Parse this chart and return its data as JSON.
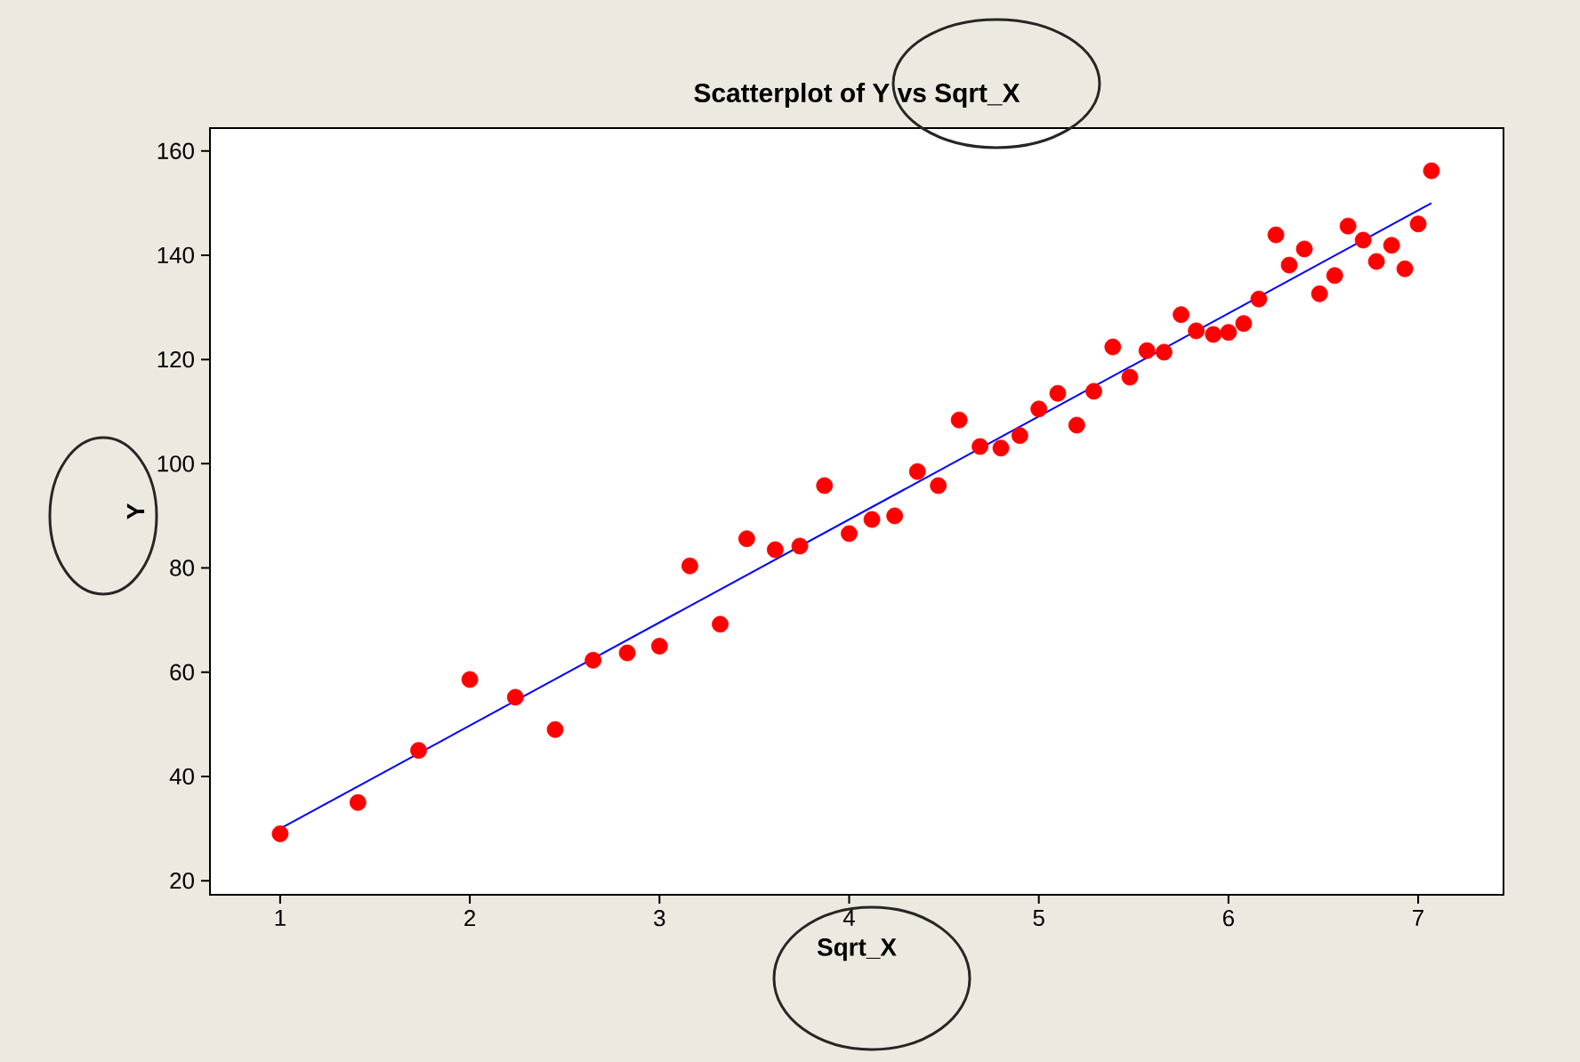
{
  "chart_data": {
    "type": "scatter",
    "title": "Scatterplot of Y vs Sqrt_X",
    "xlabel": "Sqrt_X",
    "ylabel": "Y",
    "xlim": [
      0.63,
      7.45
    ],
    "ylim": [
      17.3,
      164.4
    ],
    "xticks": [
      1,
      2,
      3,
      4,
      5,
      6,
      7
    ],
    "yticks": [
      20,
      40,
      60,
      80,
      100,
      120,
      140,
      160
    ],
    "series": [
      {
        "color": "#ff0000",
        "x": [
          1,
          1.41,
          1.73,
          2,
          2.24,
          2.45,
          2.65,
          2.83,
          3,
          3.16,
          3.32,
          3.46,
          3.61,
          3.74,
          3.87,
          4,
          4.12,
          4.24,
          4.36,
          4.47,
          4.58,
          4.69,
          4.8,
          4.9,
          5,
          5.1,
          5.2,
          5.29,
          5.39,
          5.48,
          5.57,
          5.66,
          5.75,
          5.83,
          5.92,
          6,
          6.08,
          6.16,
          6.25,
          6.32,
          6.4,
          6.48,
          6.56,
          6.63,
          6.71,
          6.78,
          6.86,
          6.93,
          7,
          7.07
        ],
        "values": [
          29,
          35,
          45,
          58.6,
          55.2,
          49,
          62.3,
          63.7,
          65,
          80.4,
          69.2,
          85.6,
          83.5,
          84.2,
          95.8,
          86.6,
          89.3,
          90,
          98.5,
          95.8,
          108.4,
          103.3,
          103,
          105.4,
          110.5,
          113.5,
          107.4,
          113.9,
          122.4,
          116.6,
          121.7,
          121.4,
          128.6,
          125.5,
          124.8,
          125.2,
          126.9,
          131.6,
          143.9,
          138.1,
          141.2,
          132.6,
          136.1,
          145.6,
          142.9,
          138.8,
          141.9,
          137.4,
          146,
          156.2
        ]
      },
      {
        "type": "line",
        "color": "#0000ff",
        "line_style": "solid",
        "x": [
          1,
          7.07
        ],
        "values": [
          30,
          150
        ]
      }
    ]
  }
}
